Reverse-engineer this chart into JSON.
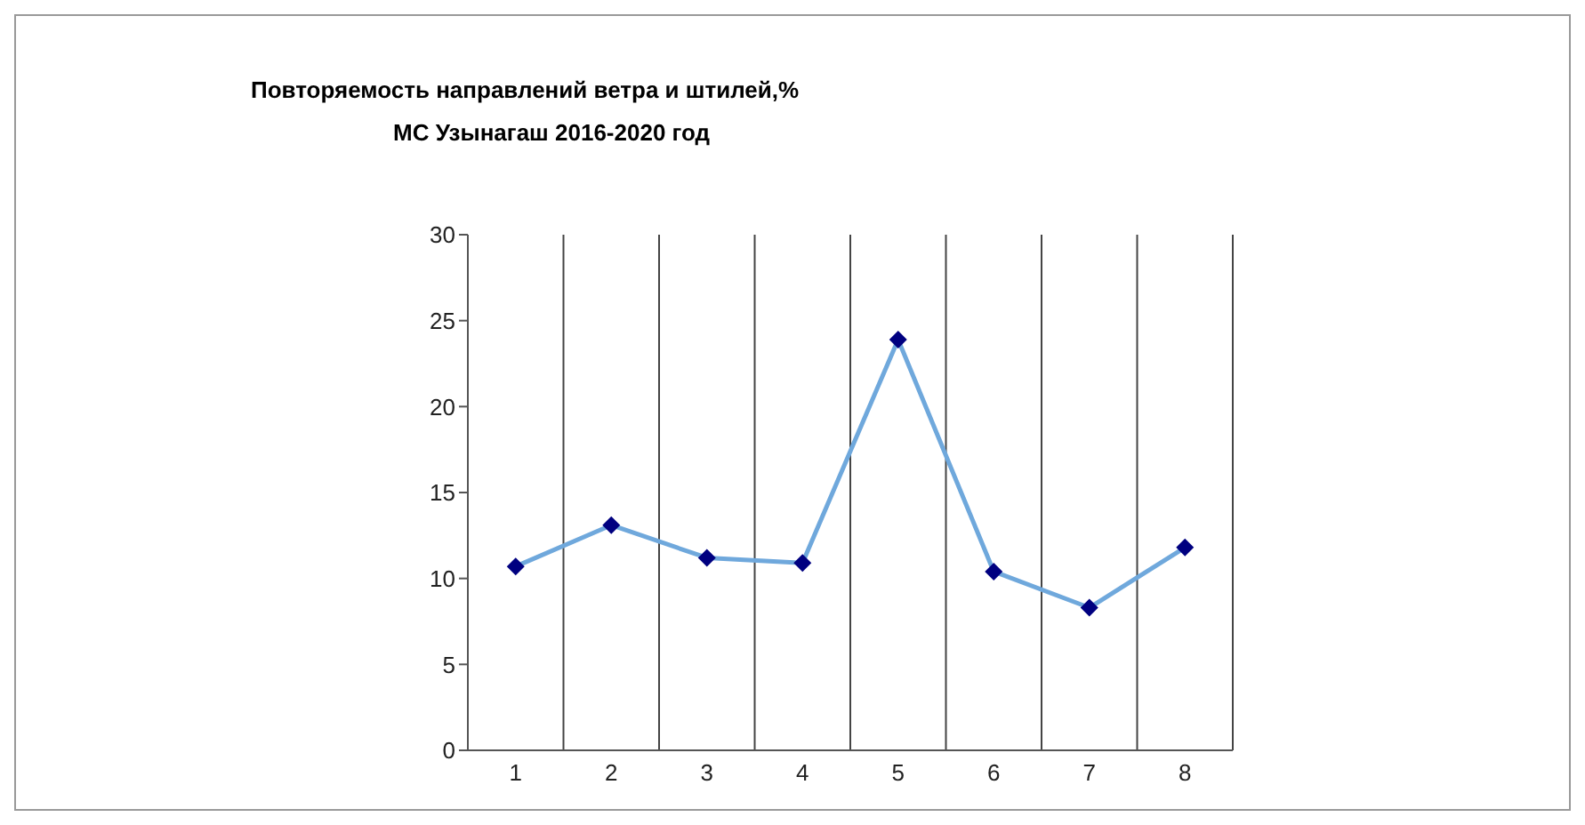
{
  "chart_data": {
    "type": "line",
    "title": "Повторяемость направлений ветра и штилей,%",
    "subtitle": "МС Узынагаш 2016-2020 год",
    "categories": [
      "1",
      "2",
      "3",
      "4",
      "5",
      "6",
      "7",
      "8"
    ],
    "series": [
      {
        "color": "#6fa8dc",
        "values": [
          10.7,
          13.1,
          11.2,
          10.9,
          23.9,
          10.4,
          8.3,
          11.8
        ]
      }
    ],
    "ylim": [
      0,
      30
    ],
    "yticks": [
      0,
      5,
      10,
      15,
      20,
      25,
      30
    ],
    "grid": "x",
    "legend": false,
    "marker": "diamond",
    "line_style": "solid"
  }
}
